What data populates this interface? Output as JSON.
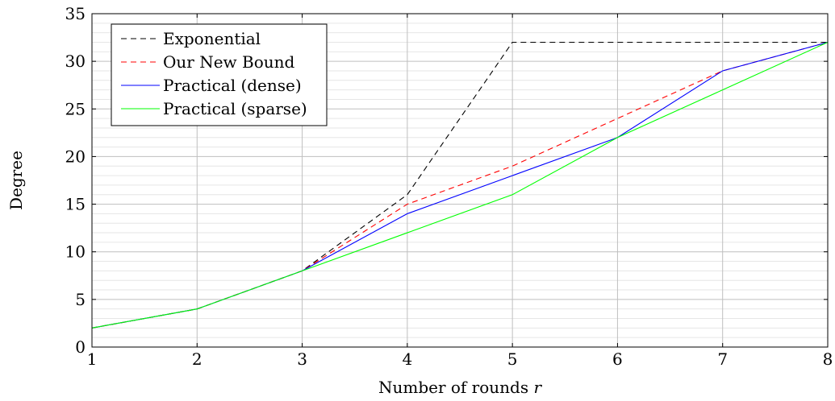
{
  "chart_data": {
    "type": "line",
    "title": "",
    "xlabel": "Number of rounds r",
    "ylabel": "Degree",
    "xlim": [
      1,
      8
    ],
    "ylim": [
      0,
      35
    ],
    "xticks": [
      "1",
      "2",
      "3",
      "4",
      "5",
      "6",
      "7",
      "8"
    ],
    "yticks": [
      "0",
      "5",
      "10",
      "15",
      "20",
      "25",
      "30",
      "35"
    ],
    "grid": {
      "major": true,
      "minor_y": true
    },
    "legend_position": "top-left",
    "series": [
      {
        "name": "Exponential",
        "color": "#000000",
        "dashed": true,
        "x": [
          1,
          2,
          3,
          4,
          5,
          6,
          7,
          8
        ],
        "y": [
          2,
          4,
          8,
          16,
          32,
          32,
          32,
          32
        ]
      },
      {
        "name": "Our New Bound",
        "color": "#ff0000",
        "dashed": true,
        "x": [
          1,
          2,
          3,
          4,
          5,
          6,
          7,
          8
        ],
        "y": [
          2,
          4,
          8,
          15,
          19,
          24,
          29,
          32
        ]
      },
      {
        "name": "Practical (dense)",
        "color": "#0000ff",
        "dashed": false,
        "x": [
          1,
          2,
          3,
          4,
          5,
          6,
          7,
          8
        ],
        "y": [
          2,
          4,
          8,
          14,
          18,
          22,
          29,
          32
        ]
      },
      {
        "name": "Practical (sparse)",
        "color": "#00ff00",
        "dashed": false,
        "x": [
          1,
          2,
          3,
          4,
          5,
          6,
          7,
          8
        ],
        "y": [
          2,
          4,
          8,
          12,
          16,
          22,
          27,
          32
        ]
      }
    ]
  }
}
